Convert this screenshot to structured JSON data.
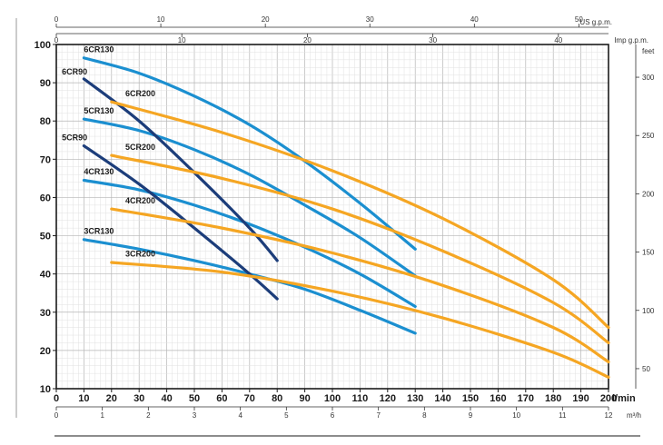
{
  "chart_data": {
    "type": "line",
    "title": "",
    "x_axis": {
      "unit": "l/min",
      "min": 0,
      "max": 200,
      "ticks": [
        0,
        10,
        20,
        30,
        40,
        50,
        60,
        70,
        80,
        90,
        100,
        110,
        120,
        130,
        140,
        150,
        160,
        170,
        180,
        190,
        200
      ],
      "tick_labels": [
        "0",
        "10",
        "20",
        "30",
        "40",
        "50",
        "60",
        "70",
        "80",
        "90",
        "100",
        "110",
        "120",
        "130",
        "140",
        "150",
        "160",
        "170",
        "180",
        "190",
        "200"
      ]
    },
    "y_axis": {
      "unit": "",
      "min": 10,
      "max": 100,
      "ticks": [
        10,
        20,
        30,
        40,
        50,
        60,
        70,
        80,
        90,
        100
      ],
      "tick_labels": [
        "10",
        "20",
        "30",
        "40",
        "50",
        "60",
        "70",
        "80",
        "90",
        "100"
      ]
    },
    "y2_axis": {
      "unit": "feet",
      "ticks_m": [
        15.24,
        30.48,
        45.72,
        60.96,
        76.2,
        91.44
      ],
      "tick_labels": [
        "50",
        "100",
        "150",
        "200",
        "250",
        "300"
      ]
    },
    "top_axis_us": {
      "unit": "US g.p.m.",
      "ticks_lmin": [
        0,
        37.85,
        75.71,
        113.56,
        151.42,
        189.27
      ],
      "tick_labels": [
        "0",
        "10",
        "20",
        "30",
        "40",
        "50"
      ]
    },
    "top_axis_imp": {
      "unit": "Imp g.p.m.",
      "ticks_lmin": [
        0,
        45.46,
        90.92,
        136.38,
        181.84
      ],
      "tick_labels": [
        "0",
        "10",
        "20",
        "30",
        "40"
      ]
    },
    "bottom_axis_m3h": {
      "unit": "m³/h",
      "ticks_lmin": [
        0,
        16.67,
        33.33,
        50,
        66.67,
        83.33,
        100,
        116.67,
        133.33,
        150,
        166.67,
        183.33,
        200
      ],
      "tick_labels": [
        "0",
        "1",
        "2",
        "3",
        "4",
        "5",
        "6",
        "7",
        "8",
        "9",
        "10",
        "11",
        "12"
      ]
    },
    "grid": true,
    "series": [
      {
        "name": "6CR130",
        "color": "#1b8fd0",
        "x": [
          10,
          30,
          50,
          70,
          90,
          110,
          130
        ],
        "y": [
          96.5,
          92.5,
          86.5,
          79,
          69.5,
          58.5,
          46.5
        ]
      },
      {
        "name": "5CR130",
        "color": "#1b8fd0",
        "x": [
          10,
          30,
          50,
          70,
          90,
          110,
          130
        ],
        "y": [
          80.5,
          77.5,
          72.5,
          66,
          58,
          49.5,
          39.5
        ]
      },
      {
        "name": "4CR130",
        "color": "#1b8fd0",
        "x": [
          10,
          30,
          50,
          70,
          90,
          110,
          130
        ],
        "y": [
          64.5,
          62,
          58,
          53,
          47,
          40,
          31.5
        ]
      },
      {
        "name": "3CR130",
        "color": "#1b8fd0",
        "x": [
          10,
          30,
          50,
          70,
          90,
          110,
          130
        ],
        "y": [
          49,
          46.5,
          43.5,
          40,
          36,
          30.5,
          24.5
        ]
      },
      {
        "name": "6CR90",
        "color": "#1c3d7a",
        "x": [
          10,
          30,
          50,
          70,
          80
        ],
        "y": [
          91,
          80,
          66.5,
          52,
          43.5
        ]
      },
      {
        "name": "5CR90",
        "color": "#1c3d7a",
        "x": [
          10,
          30,
          50,
          70,
          80
        ],
        "y": [
          73.5,
          63.5,
          52,
          40,
          33.5
        ]
      },
      {
        "name": "6CR200",
        "color": "#f5a623",
        "x": [
          20,
          60,
          100,
          140,
          180,
          200
        ],
        "y": [
          85,
          77,
          67,
          54.5,
          38.5,
          26
        ]
      },
      {
        "name": "5CR200",
        "color": "#f5a623",
        "x": [
          20,
          60,
          100,
          140,
          180,
          200
        ],
        "y": [
          71,
          65,
          57,
          46,
          32.5,
          22
        ]
      },
      {
        "name": "4CR200",
        "color": "#f5a623",
        "x": [
          20,
          60,
          100,
          140,
          180,
          200
        ],
        "y": [
          57,
          52,
          45.5,
          37,
          26,
          17
        ]
      },
      {
        "name": "3CR200",
        "color": "#f5a623",
        "x": [
          20,
          60,
          100,
          140,
          180,
          200
        ],
        "y": [
          43,
          40.5,
          35.5,
          28.5,
          19.5,
          13
        ]
      }
    ],
    "labels": [
      {
        "text": "6CR130",
        "x": 10,
        "y": 98
      },
      {
        "text": "6CR90",
        "x": 2,
        "y": 92.2
      },
      {
        "text": "6CR200",
        "x": 25,
        "y": 86.5
      },
      {
        "text": "5CR130",
        "x": 10,
        "y": 82
      },
      {
        "text": "5CR90",
        "x": 2,
        "y": 75
      },
      {
        "text": "5CR200",
        "x": 25,
        "y": 72.5
      },
      {
        "text": "4CR130",
        "x": 10,
        "y": 66
      },
      {
        "text": "4CR200",
        "x": 25,
        "y": 58.5
      },
      {
        "text": "3CR130",
        "x": 10,
        "y": 50.5
      },
      {
        "text": "3CR200",
        "x": 25,
        "y": 44.5
      }
    ]
  }
}
